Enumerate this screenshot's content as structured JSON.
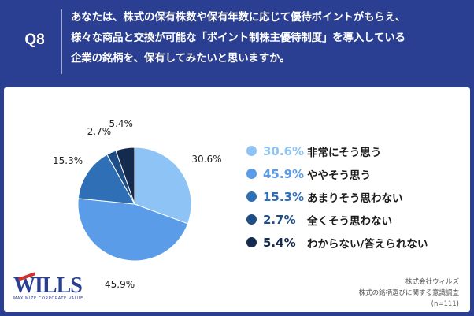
{
  "question": {
    "number": "Q8",
    "lines": [
      "あなたは、株式の保有株数や保有年数に応じて優待ポイントがもらえ、",
      "様々な商品と交換が可能な「ポイント制株主優待制度」を導入している",
      "企業の銘柄を、保有してみたいと思いますか。"
    ]
  },
  "chart_data": {
    "type": "pie",
    "categories": [
      "非常にそう思う",
      "ややそう思う",
      "あまりそう思わない",
      "全くそう思わない",
      "わからない/答えられない"
    ],
    "values": [
      30.6,
      45.9,
      15.3,
      2.7,
      5.4
    ],
    "value_labels": [
      "30.6%",
      "45.9%",
      "15.3%",
      "2.7%",
      "5.4%"
    ],
    "colors": [
      "#8ec3f5",
      "#5a9ce8",
      "#2f6fb5",
      "#1e4e85",
      "#152a4f"
    ],
    "start": "12 o'clock",
    "direction": "clockwise"
  },
  "legend": {
    "items": [
      {
        "pct": "30.6%",
        "label": "非常にそう思う",
        "color": "#8ec3f5"
      },
      {
        "pct": "45.9%",
        "label": "ややそう思う",
        "color": "#5a9ce8"
      },
      {
        "pct": "15.3%",
        "label": "あまりそう思わない",
        "color": "#2f6fb5"
      },
      {
        "pct": "2.7%",
        "label": "全くそう思わない",
        "color": "#1e4e85"
      },
      {
        "pct": "5.4%",
        "label": "わからない/答えられない",
        "color": "#152a4f"
      }
    ]
  },
  "logo": {
    "text": "WILLS",
    "tagline": "MAXIMIZE CORPORATE VALUE"
  },
  "source": {
    "company": "株式会社ウィルズ",
    "survey": "株式の銘柄選びに関する意識調査",
    "sample": "(n=111)"
  }
}
